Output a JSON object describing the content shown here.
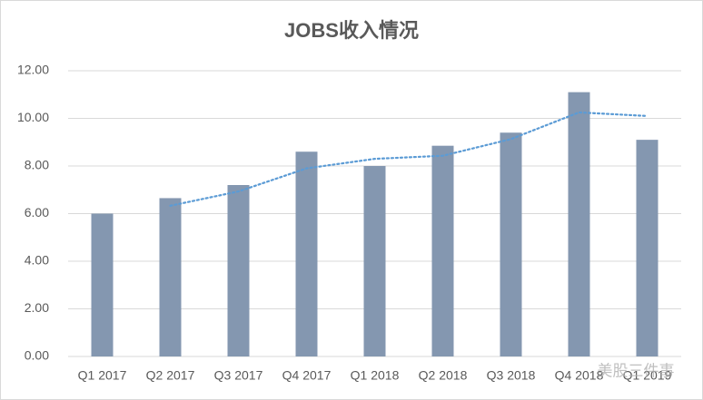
{
  "chart_data": {
    "type": "bar",
    "title": "JOBS收入情况",
    "categories": [
      "Q1 2017",
      "Q2 2017",
      "Q3 2017",
      "Q4 2017",
      "Q1 2018",
      "Q2 2018",
      "Q3 2018",
      "Q4 2018",
      "Q1 2019"
    ],
    "series": [
      {
        "type": "bar",
        "color": "#8497b0",
        "values": [
          6.0,
          6.65,
          7.2,
          8.6,
          8.0,
          8.85,
          9.4,
          11.1,
          9.1
        ]
      },
      {
        "type": "line",
        "color": "#5b9bd5",
        "values": [
          null,
          6.33,
          6.93,
          7.9,
          8.3,
          8.43,
          9.13,
          10.25,
          10.1
        ]
      }
    ],
    "ylim": [
      0,
      12
    ],
    "yticks": [
      {
        "value": 0,
        "label": "0.00"
      },
      {
        "value": 2,
        "label": "2.00"
      },
      {
        "value": 4,
        "label": "4.00"
      },
      {
        "value": 6,
        "label": "6.00"
      },
      {
        "value": 8,
        "label": "8.00"
      },
      {
        "value": 10,
        "label": "10.00"
      },
      {
        "value": 12,
        "label": "12.00"
      }
    ],
    "grid": true,
    "watermark": "美股三件事"
  }
}
